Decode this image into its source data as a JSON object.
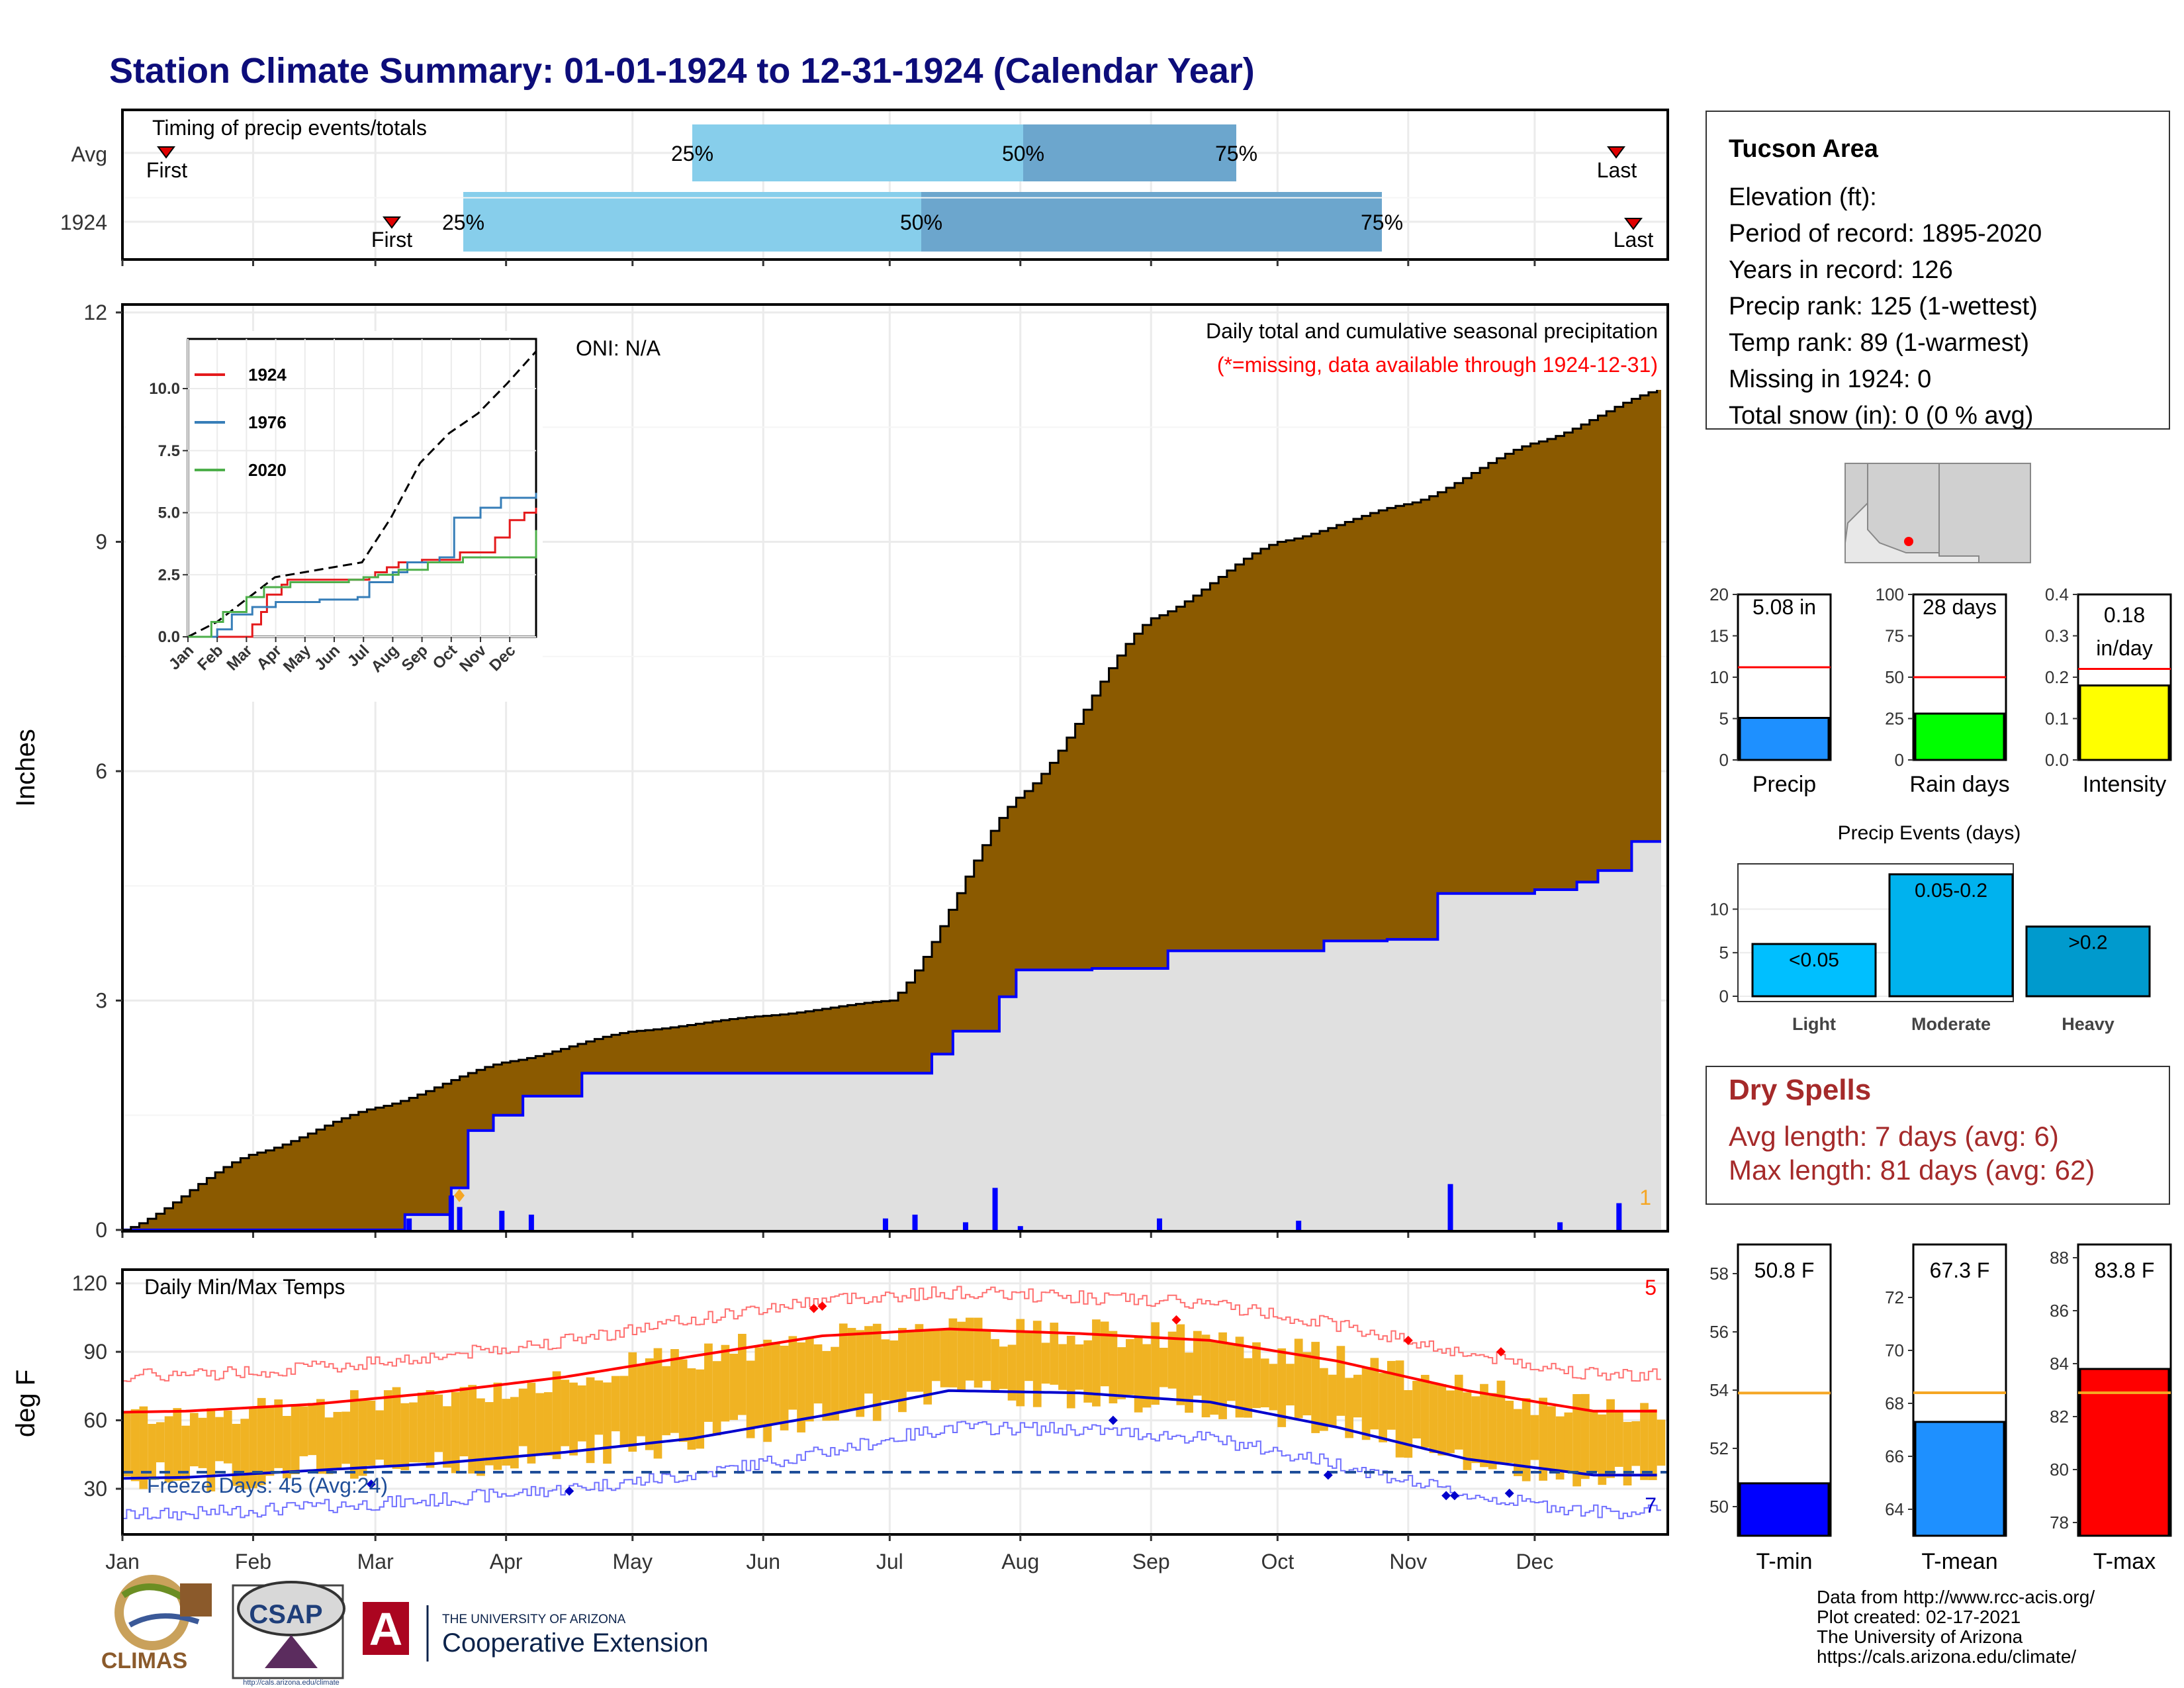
{
  "title": "Station Climate Summary: 01-01-1924 to 12-31-1924 (Calendar Year)",
  "colors": {
    "title": "#0d0d7a",
    "q1": "#87ceeb",
    "q2": "#6ca6cd",
    "cum_fill": "#8b5a00",
    "avg_fill": "#e0e0e0",
    "avg_line": "#0000ff",
    "temp_bar": "#f0b323",
    "tmax_line": "#ff0000",
    "tmin_line": "#0000cc",
    "dry": "#a52a2a",
    "missing_note": "#ff0000"
  },
  "timing": {
    "title": "Timing of precip events/totals",
    "rows": [
      {
        "label": "Avg",
        "first": "Jan 3",
        "q25": "Jun 3",
        "q50": "Jul 22",
        "q75": "Sep 12",
        "last": "Dec 26"
      },
      {
        "label": "1924",
        "first": "Mar 10",
        "q25": "Mar 26",
        "q50": "Jul 6",
        "q75": "Oct 16",
        "last": "Dec 29"
      }
    ],
    "labels": {
      "first": "First",
      "last": "Last",
      "p25": "25%",
      "p50": "50%",
      "p75": "75%"
    }
  },
  "precip": {
    "ylabel": "Inches",
    "oni": "ONI: N/A",
    "title": "Daily total and cumulative seasonal precipitation",
    "missing_note": "(*=missing, data available through 1924-12-31)",
    "missing_count": "1",
    "yticks": [
      "0",
      "3",
      "6",
      "9",
      "12"
    ],
    "ylim": [
      0,
      12
    ]
  },
  "inset": {
    "yticks": [
      "0.0",
      "2.5",
      "5.0",
      "7.5",
      "10.0"
    ],
    "months": [
      "Jan",
      "Feb",
      "Mar",
      "Apr",
      "May",
      "Jun",
      "Jul",
      "Aug",
      "Sep",
      "Oct",
      "Nov",
      "Dec"
    ],
    "legend": [
      {
        "name": "1924",
        "color": "#e41a1c"
      },
      {
        "name": "1976",
        "color": "#377eb8"
      },
      {
        "name": "2020",
        "color": "#4daf4a"
      }
    ]
  },
  "temps": {
    "ylabel": "deg F",
    "title": "Daily Min/Max Temps",
    "freeze": "Freeze Days: 45 (Avg:24)",
    "max_count": "5",
    "min_count": "7",
    "yticks": [
      "30",
      "60",
      "90",
      "120"
    ],
    "months": [
      "Jan",
      "Feb",
      "Mar",
      "Apr",
      "May",
      "Jun",
      "Jul",
      "Aug",
      "Sep",
      "Oct",
      "Nov",
      "Dec"
    ]
  },
  "station": {
    "name": "Tucson Area",
    "lines": [
      "Elevation (ft):",
      "Period of record: 1895-2020",
      "Years in record: 126",
      "Precip rank: 125 (1-wettest)",
      "Temp rank: 89 (1-warmest)",
      "Missing in 1924: 0",
      "Total snow (in): 0 (0 % avg)"
    ]
  },
  "mini": [
    {
      "label": "Precip",
      "value_text": "5.08 in",
      "value": 5.08,
      "avg": 11.2,
      "ymax": 20,
      "ticks": [
        "0",
        "5",
        "10",
        "15",
        "20"
      ],
      "color": "#1e90ff"
    },
    {
      "label": "Rain days",
      "value_text": "28 days",
      "value": 28,
      "avg": 50,
      "ymax": 100,
      "ticks": [
        "0",
        "25",
        "50",
        "75",
        "100"
      ],
      "color": "#00ff00"
    },
    {
      "label": "Intensity",
      "value_text": "0.18",
      "value_text2": "in/day",
      "value": 0.18,
      "avg": 0.22,
      "ymax": 0.4,
      "ticks": [
        "0.0",
        "0.1",
        "0.2",
        "0.3",
        "0.4"
      ],
      "color": "#ffff00"
    }
  ],
  "events": {
    "title": "Precip Events (days)",
    "yticks": [
      "0",
      "5",
      "10"
    ],
    "bars": [
      {
        "name": "Light",
        "label": "<0.05",
        "value": 6,
        "color": "#00bfff"
      },
      {
        "name": "Moderate",
        "label": "0.05-0.2",
        "value": 14,
        "color": "#00b2ee"
      },
      {
        "name": "Heavy",
        "label": ">0.2",
        "value": 8,
        "color": "#009acd"
      }
    ]
  },
  "dry": {
    "title": "Dry Spells",
    "avg": "Avg length: 7 days (avg: 6)",
    "max": "Max length: 81 days (avg: 62)"
  },
  "tbars": [
    {
      "label": "T-min",
      "value_text": "50.8 F",
      "value": 50.8,
      "avg": 53.9,
      "ylim": [
        49,
        59
      ],
      "ticks": [
        "50",
        "52",
        "54",
        "56",
        "58"
      ],
      "color": "#0000ff"
    },
    {
      "label": "T-mean",
      "value_text": "67.3 F",
      "value": 67.3,
      "avg": 68.4,
      "ylim": [
        63,
        74
      ],
      "ticks": [
        "64",
        "66",
        "68",
        "70",
        "72"
      ],
      "color": "#1e90ff"
    },
    {
      "label": "T-max",
      "value_text": "83.8 F",
      "value": 83.8,
      "avg": 82.9,
      "ylim": [
        77.5,
        88.5
      ],
      "ticks": [
        "78",
        "80",
        "82",
        "84",
        "86",
        "88"
      ],
      "color": "#ff0000"
    }
  ],
  "footer": {
    "lines": [
      "Data from http://www.rcc-acis.org/",
      "Plot created: 02-17-2021",
      "The University of Arizona",
      "https://cals.arizona.edu/climate/"
    ],
    "climas": "CLIMAS",
    "csap": "CSAP",
    "csap_url": "http://cals.arizona.edu/climate",
    "ua_small": "THE UNIVERSITY OF ARIZONA",
    "ua_big": "Cooperative Extension",
    "ua_letter": "A"
  },
  "chart_data": [
    {
      "type": "bar",
      "title": "Timing of precip events/totals",
      "categories": [
        "Avg",
        "1924"
      ],
      "series": [
        {
          "name": "First",
          "values": [
            "Jan 3",
            "Mar 10"
          ]
        },
        {
          "name": "25%",
          "values": [
            "Jun 3",
            "Mar 26"
          ]
        },
        {
          "name": "50%",
          "values": [
            "Jul 22",
            "Jul 6"
          ]
        },
        {
          "name": "75%",
          "values": [
            "Sep 12",
            "Oct 16"
          ]
        },
        {
          "name": "Last",
          "values": [
            "Dec 26",
            "Dec 29"
          ]
        }
      ]
    },
    {
      "type": "area",
      "title": "Daily total and cumulative seasonal precipitation",
      "ylabel": "Inches",
      "ylim": [
        0,
        12
      ],
      "x": [
        "Jan 1",
        "Feb 1",
        "Mar 1",
        "Apr 1",
        "May 1",
        "Jun 1",
        "Jul 1",
        "Aug 1",
        "Sep 1",
        "Oct 1",
        "Nov 1",
        "Dec 1",
        "Dec 31"
      ],
      "series": [
        {
          "values": [
            0.0,
            1.0,
            1.6,
            2.2,
            2.6,
            2.8,
            3.0,
            5.7,
            8.0,
            9.0,
            9.5,
            10.3,
            11.0
          ]
        },
        {
          "values": [
            0.0,
            0.0,
            0.2,
            2.05,
            2.05,
            2.05,
            2.05,
            3.45,
            3.65,
            3.75,
            3.8,
            4.5,
            5.08
          ]
        }
      ],
      "daily_events": [
        {
          "date": "Mar 10",
          "value": 0.15
        },
        {
          "date": "Mar 20",
          "value": 0.45
        },
        {
          "date": "Mar 22",
          "value": 0.3
        },
        {
          "date": "Apr 1",
          "value": 0.25
        },
        {
          "date": "Apr 8",
          "value": 0.2
        },
        {
          "date": "Jul 1",
          "value": 0.15
        },
        {
          "date": "Jul 8",
          "value": 0.2
        },
        {
          "date": "Jul 20",
          "value": 0.1
        },
        {
          "date": "Jul 27",
          "value": 0.55
        },
        {
          "date": "Aug 2",
          "value": 0.05
        },
        {
          "date": "Sep 4",
          "value": 0.15
        },
        {
          "date": "Oct 7",
          "value": 0.12
        },
        {
          "date": "Nov 12",
          "value": 0.6
        },
        {
          "date": "Dec 8",
          "value": 0.1
        },
        {
          "date": "Dec 22",
          "value": 0.35
        }
      ]
    },
    {
      "type": "line",
      "xlim": [
        "Jan",
        "Dec"
      ],
      "ylim": [
        0,
        12
      ],
      "series": [
        {
          "name": "1924",
          "x": [
            "Jan",
            "Mar",
            "Apr",
            "Jul",
            "Aug",
            "Oct",
            "Dec"
          ],
          "values": [
            0.0,
            0.0,
            2.3,
            2.8,
            3.6,
            4.1,
            5.1
          ]
        },
        {
          "name": "1976",
          "x": [
            "Jan",
            "Mar",
            "Apr",
            "Jul",
            "Aug",
            "Oct",
            "Dec"
          ],
          "values": [
            0.0,
            0.8,
            1.3,
            2.2,
            3.5,
            5.0,
            5.7
          ]
        },
        {
          "name": "2020",
          "x": [
            "Jan",
            "Mar",
            "Apr",
            "Jul",
            "Aug",
            "Oct",
            "Dec"
          ],
          "values": [
            0.0,
            1.5,
            2.3,
            2.6,
            3.3,
            3.8,
            4.3
          ]
        }
      ]
    },
    {
      "type": "line",
      "title": "Daily Min/Max Temps",
      "ylabel": "deg F",
      "ylim": [
        10,
        125
      ],
      "x": [
        "Jan",
        "Feb",
        "Mar",
        "Apr",
        "May",
        "Jun",
        "Jul",
        "Aug",
        "Sep",
        "Oct",
        "Nov",
        "Dec"
      ],
      "series": [
        {
          "values": [
            64,
            67,
            72,
            79,
            88,
            97,
            100,
            98,
            95,
            86,
            73,
            64
          ]
        },
        {
          "values": [
            35,
            38,
            41,
            46,
            52,
            62,
            73,
            72,
            68,
            57,
            43,
            36
          ]
        }
      ]
    },
    {
      "type": "bar",
      "categories": [
        "Precip",
        "Rain days",
        "Intensity"
      ],
      "series": [
        {
          "values": [
            5.08,
            28,
            0.18
          ]
        },
        {
          "values": [
            11.2,
            50,
            0.22
          ]
        }
      ]
    },
    {
      "type": "bar",
      "title": "Precip Events (days)",
      "categories": [
        "Light",
        "Moderate",
        "Heavy"
      ],
      "values": [
        6,
        14,
        8
      ]
    },
    {
      "type": "bar",
      "categories": [
        "T-min",
        "T-mean",
        "T-max"
      ],
      "series": [
        {
          "values": [
            50.8,
            67.3,
            83.8
          ]
        },
        {
          "values": [
            53.9,
            68.4,
            82.9
          ]
        }
      ]
    }
  ]
}
